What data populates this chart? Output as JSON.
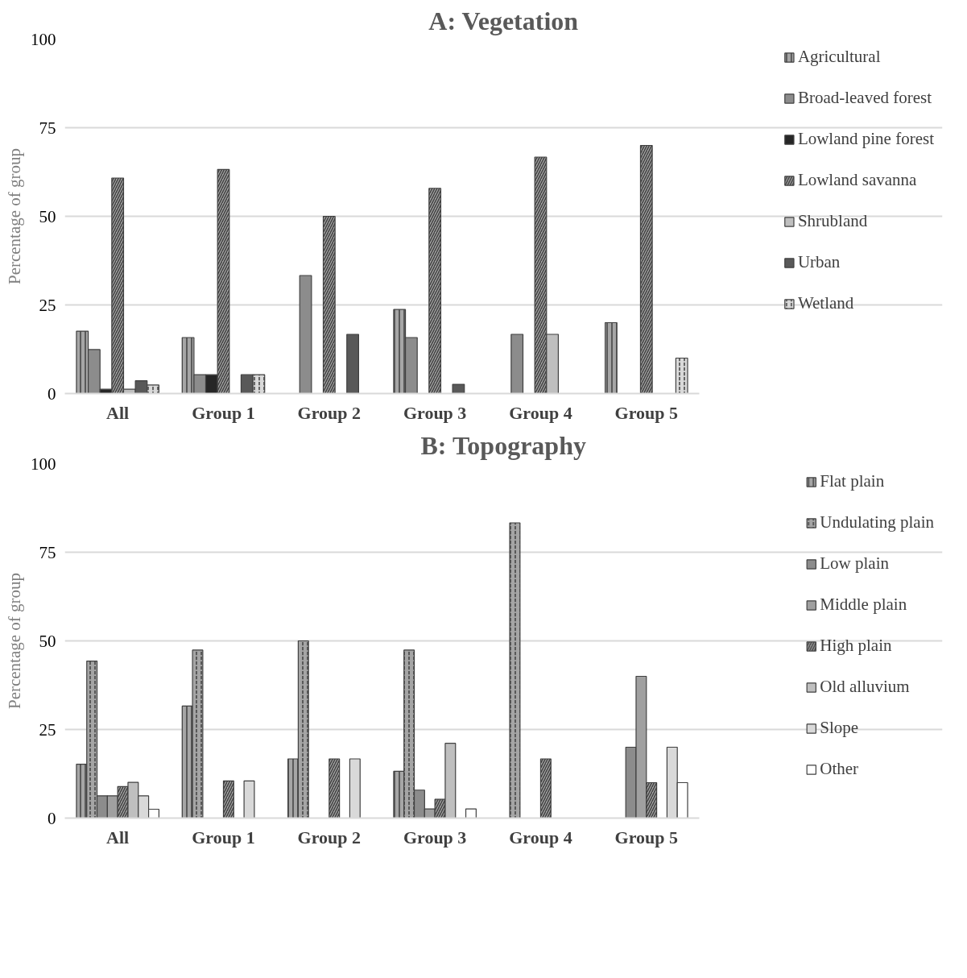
{
  "chart_data": [
    {
      "type": "bar",
      "title": "A: Vegetation",
      "ylabel": "Percentage of group",
      "categories": [
        "All",
        "Group 1",
        "Group 2",
        "Group 3",
        "Group 4",
        "Group 5"
      ],
      "ylim": [
        0,
        100
      ],
      "yticks": [
        0,
        25,
        50,
        75,
        100
      ],
      "grid": "y",
      "legend": "right",
      "series": [
        {
          "name": "Agricultural",
          "color": "#a6a6a6",
          "values": [
            17.6,
            15.8,
            null,
            23.7,
            null,
            20
          ]
        },
        {
          "name": "Broad-leaved forest",
          "color": "#8c8c8c",
          "values": [
            12.4,
            5.3,
            33.3,
            15.8,
            16.7,
            null
          ]
        },
        {
          "name": "Lowland pine forest",
          "color": "#262626",
          "values": [
            1.2,
            5.3,
            null,
            null,
            null,
            null
          ]
        },
        {
          "name": "Lowland savanna",
          "color": "#a6a6a6",
          "values": [
            60.8,
            63.2,
            50,
            57.9,
            66.7,
            70
          ]
        },
        {
          "name": "Shrubland",
          "color": "#bfbfbf",
          "values": [
            1.2,
            null,
            null,
            null,
            16.7,
            null
          ]
        },
        {
          "name": "Urban",
          "color": "#595959",
          "values": [
            3.6,
            5.3,
            16.7,
            2.6,
            null,
            null
          ]
        },
        {
          "name": "Wetland",
          "color": "#d9d9d9",
          "values": [
            2.4,
            5.3,
            null,
            null,
            null,
            10
          ]
        }
      ]
    },
    {
      "type": "bar",
      "title": "B: Topography",
      "ylabel": "Percentage of group",
      "categories": [
        "All",
        "Group 1",
        "Group 2",
        "Group 3",
        "Group 4",
        "Group 5"
      ],
      "ylim": [
        0,
        100
      ],
      "yticks": [
        0,
        25,
        50,
        75,
        100
      ],
      "grid": "y",
      "legend": "right",
      "series": [
        {
          "name": "Flat plain",
          "color": "#a6a6a6",
          "values": [
            15.2,
            31.6,
            16.7,
            13.2,
            null,
            null
          ]
        },
        {
          "name": "Undulating plain",
          "color": "#a5a5a5",
          "values": [
            44.3,
            47.4,
            50,
            47.4,
            83.3,
            null
          ]
        },
        {
          "name": "Low plain",
          "color": "#8c8c8c",
          "values": [
            6.3,
            null,
            null,
            7.9,
            null,
            20
          ]
        },
        {
          "name": "Middle plain",
          "color": "#a0a0a0",
          "values": [
            6.3,
            null,
            null,
            2.6,
            null,
            40
          ]
        },
        {
          "name": "High plain",
          "color": "#a6a6a6",
          "values": [
            8.9,
            10.5,
            16.7,
            5.3,
            16.7,
            10
          ]
        },
        {
          "name": "Old alluvium",
          "color": "#bfbfbf",
          "values": [
            10.1,
            null,
            null,
            21.1,
            null,
            null
          ]
        },
        {
          "name": "Slope",
          "color": "#d9d9d9",
          "values": [
            6.3,
            10.5,
            16.7,
            null,
            null,
            20
          ]
        },
        {
          "name": "Other",
          "color": "#ffffff",
          "values": [
            2.5,
            null,
            null,
            2.6,
            null,
            10
          ]
        }
      ]
    }
  ]
}
